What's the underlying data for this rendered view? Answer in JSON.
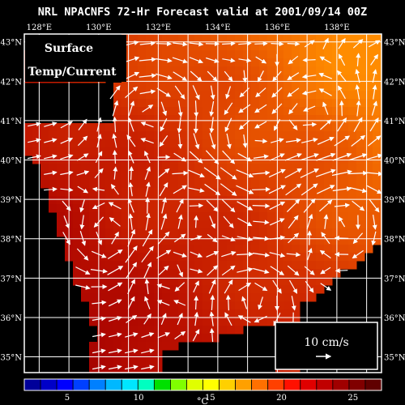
{
  "title": "NRL NPACNFS 72-Hr Forecast valid at 2001/09/14 00Z",
  "overlay_label": [
    "Surface",
    "Temp/Current"
  ],
  "lon_labels": [
    "128°E",
    "130°E",
    "132°E",
    "134°E",
    "136°E",
    "138°E"
  ],
  "lat_labels": [
    "43°N",
    "42°N",
    "41°N",
    "40°N",
    "39°N",
    "38°N",
    "37°N",
    "36°N",
    "35°N"
  ],
  "scale_arrow": {
    "label": "10 cm/s"
  },
  "colorbar": {
    "unit": "°C",
    "tick_labels": [
      "5",
      "10",
      "15",
      "20",
      "25"
    ],
    "colors": [
      "#00009a",
      "#0000c8",
      "#0000ff",
      "#0040ff",
      "#0080ff",
      "#00b8ff",
      "#00e6ff",
      "#00ffc0",
      "#00e000",
      "#80ff00",
      "#e0ff00",
      "#ffff00",
      "#ffd000",
      "#ffa000",
      "#ff7000",
      "#ff4000",
      "#ff1000",
      "#e00000",
      "#c00000",
      "#a00000",
      "#800000",
      "#600000"
    ]
  },
  "chart_data": {
    "type": "heatmap",
    "title": "NRL NPACNFS 72-Hr Forecast valid at 2001/09/14 00Z",
    "variable": "Surface Temp/Current",
    "x_range": [
      127.5,
      139.5
    ],
    "y_range": [
      34.6,
      43.2
    ],
    "x_ticks": [
      "128°E",
      "130°E",
      "132°E",
      "134°E",
      "136°E",
      "138°E"
    ],
    "y_ticks": [
      "43°N",
      "42°N",
      "41°N",
      "40°N",
      "39°N",
      "38°N",
      "37°N",
      "36°N",
      "35°N"
    ],
    "color_range": [
      2,
      27
    ],
    "colorbar_ticks": [
      5,
      10,
      15,
      20,
      25
    ],
    "colorbar_unit": "°C",
    "grid": true,
    "vector_scale": "10 cm/s"
  }
}
